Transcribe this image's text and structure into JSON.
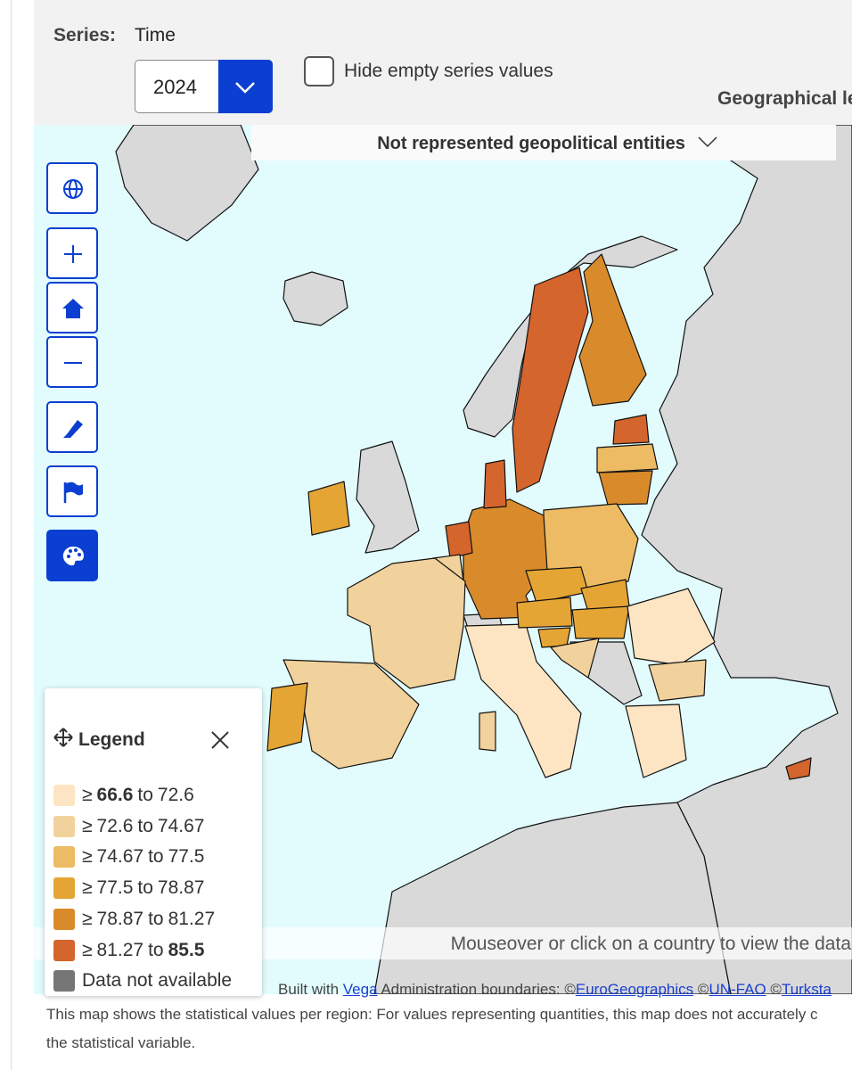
{
  "filters": {
    "series_label": "Series:",
    "series_value": "Time",
    "year": "2024",
    "hide_empty": "Hide empty series values",
    "geo_level": "Geographical le"
  },
  "map": {
    "not_represented": "Not represented geopolitical entities",
    "hint": "Mouseover or click on a country to view the data"
  },
  "legend": {
    "title": "Legend",
    "symbol": "≥",
    "connector": "to",
    "classes": [
      {
        "from": 66.6,
        "to": 72.6,
        "color": "#fde5c3"
      },
      {
        "from": 72.6,
        "to": 74.67,
        "color": "#f2d29c"
      },
      {
        "from": 74.67,
        "to": 77.5,
        "color": "#ecbb63"
      },
      {
        "from": 77.5,
        "to": 78.87,
        "color": "#e5a534"
      },
      {
        "from": 78.87,
        "to": 81.27,
        "color": "#d98b2c"
      },
      {
        "from": 81.27,
        "to": 85.5,
        "color": "#d4652d"
      }
    ],
    "na": {
      "label": "Data not available",
      "color": "#767676"
    }
  },
  "attribution": {
    "built_with": "Built with",
    "vega": "Vega",
    "admin": "Administration boundaries: ©",
    "eurogeo": "EuroGeographics",
    "copy1": "©",
    "unfao": "UN-FAO",
    "copy2": "©",
    "turksta": "Turksta"
  },
  "description": [
    "This map shows the statistical values per region: For values representing quantities, this map does not accurately c",
    "the statistical variable."
  ]
}
